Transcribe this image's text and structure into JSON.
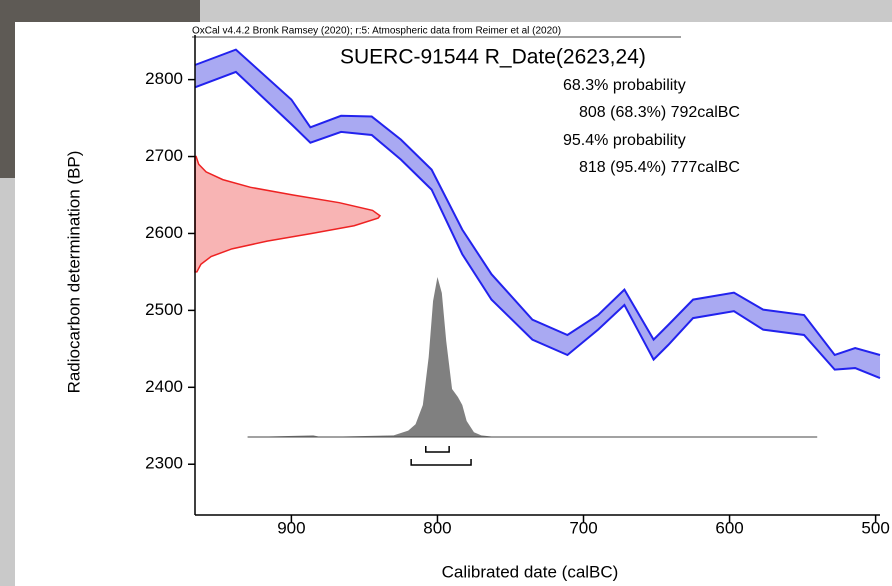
{
  "chart_data": {
    "type": "calibration",
    "header": "OxCal v4.4.2 Bronk Ramsey (2020); r:5: Atmospheric data from Reimer et al (2020)",
    "title": "SUERC-91544 R_Date(2623,24)",
    "xlabel": "Calibrated date (calBC)",
    "ylabel": "Radiocarbon determination (BP)",
    "xlim": [
      966,
      497
    ],
    "ylim": [
      2234,
      2858
    ],
    "xticks": [
      900,
      800,
      700,
      600,
      500
    ],
    "yticks": [
      2800,
      2700,
      2600,
      2500,
      2400,
      2300
    ],
    "curve": {
      "color": "#2222ee",
      "fill": "#a9a9f2",
      "x": [
        966,
        938,
        900,
        887,
        866,
        845,
        825,
        804,
        783,
        763,
        735,
        711,
        690,
        672,
        652,
        642,
        625,
        597,
        577,
        549,
        528,
        514,
        497
      ],
      "upper": [
        2819,
        2839,
        2774,
        2738,
        2753,
        2752,
        2722,
        2683,
        2605,
        2547,
        2488,
        2468,
        2494,
        2527,
        2462,
        2481,
        2514,
        2523,
        2501,
        2494,
        2442,
        2451,
        2442
      ],
      "lower": [
        2790,
        2810,
        2742,
        2718,
        2732,
        2728,
        2696,
        2657,
        2573,
        2514,
        2462,
        2442,
        2475,
        2507,
        2436,
        2455,
        2490,
        2499,
        2475,
        2468,
        2423,
        2425,
        2412
      ]
    },
    "measurement": {
      "color": "#ee2222",
      "fill": "#f8b4b4",
      "y": [
        2550,
        2560,
        2570,
        2580,
        2590,
        2600,
        2610,
        2620,
        2623,
        2630,
        2640,
        2650,
        2660,
        2670,
        2680,
        2690,
        2700
      ],
      "density": [
        0.01,
        0.032,
        0.087,
        0.2,
        0.39,
        0.63,
        0.86,
        0.99,
        1,
        0.96,
        0.78,
        0.53,
        0.3,
        0.15,
        0.06,
        0.02,
        0.006
      ]
    },
    "calibrated": {
      "color": "#808080",
      "x": [
        930,
        885,
        880,
        830,
        820,
        815,
        810,
        806,
        803,
        800,
        797,
        794,
        790,
        786,
        783,
        780,
        775,
        770,
        760,
        540
      ],
      "density": [
        0,
        0.01,
        0,
        0.01,
        0.04,
        0.08,
        0.2,
        0.5,
        0.85,
        1,
        0.9,
        0.6,
        0.3,
        0.25,
        0.2,
        0.1,
        0.03,
        0.01,
        0,
        0
      ]
    },
    "ranges": [
      {
        "heading": "68.3% probability",
        "from": 808,
        "to": 792,
        "label": "808 (68.3%) 792calBC"
      },
      {
        "heading": "95.4% probability",
        "from": 818,
        "to": 777,
        "label": "818 (95.4%) 777calBC"
      }
    ]
  }
}
